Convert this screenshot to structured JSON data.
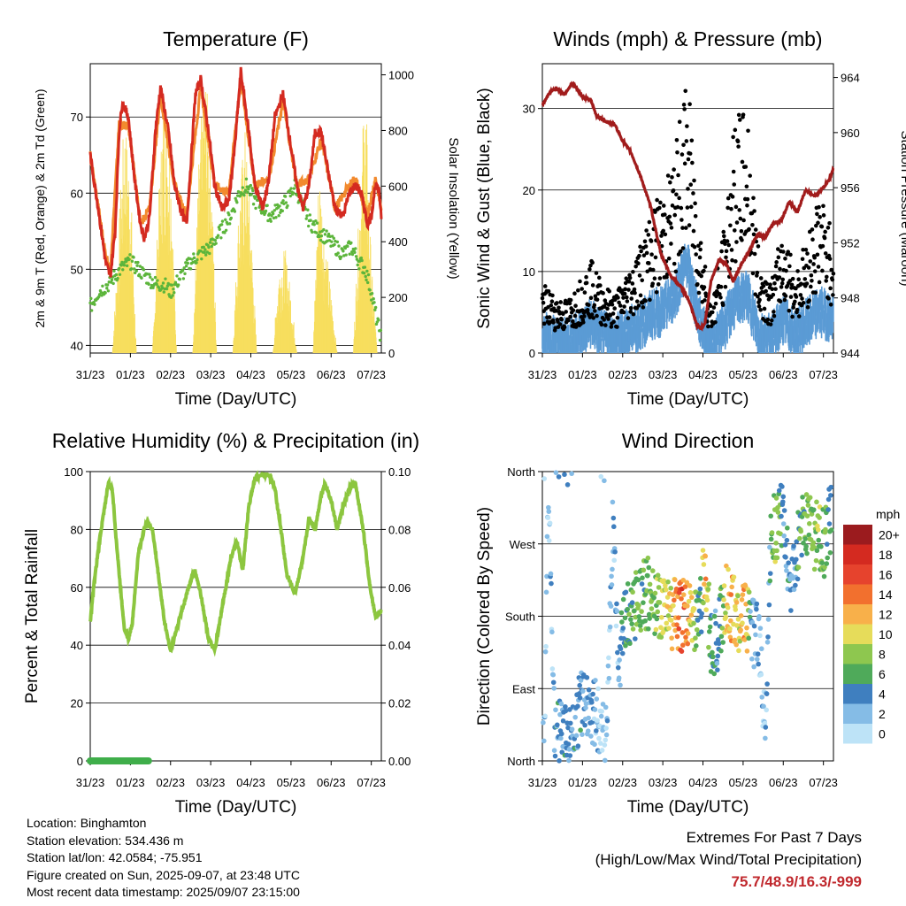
{
  "x_ticks": [
    "31/23",
    "01/23",
    "02/23",
    "03/23",
    "04/23",
    "05/23",
    "06/23",
    "07/23"
  ],
  "footer": {
    "location": "Location: Binghamton",
    "elevation": "Station elevation: 534.436 m",
    "latlon": "Station lat/lon: 42.0584; -75.951",
    "created": "Figure created on Sun, 2025-09-07, at 23:48 UTC",
    "recent": "Most recent data timestamp: 2025/09/07 23:15:00"
  },
  "extremes": {
    "title": "Extremes For Past 7 Days",
    "subtitle": "(High/Low/Max Wind/Total Precipitation)",
    "values": "75.7/48.9/16.3/-999"
  },
  "chart_data": [
    {
      "id": "temperature",
      "type": "line",
      "title": "Temperature (F)",
      "xlabel": "Time (Day/UTC)",
      "ylabel": "2m & 9m T (Red, Orange) & 2m Td (Green)",
      "ylabel_right": "Solar Insolation (Yellow)",
      "xlim": [
        0,
        7.25
      ],
      "ylim": [
        39,
        77
      ],
      "ylim_right": [
        0,
        1040
      ],
      "yticks": [
        40,
        50,
        60,
        70
      ],
      "yticks_right": [
        0,
        200,
        400,
        600,
        800,
        1000
      ],
      "grid": true,
      "series": [
        {
          "name": "2m T",
          "color": "#d42a20",
          "axis": "left",
          "x": [
            0,
            0.2,
            0.38,
            0.5,
            0.62,
            0.72,
            0.8,
            0.95,
            1.1,
            1.25,
            1.35,
            1.48,
            1.62,
            1.75,
            1.95,
            2.1,
            2.3,
            2.4,
            2.48,
            2.62,
            2.75,
            2.95,
            3.1,
            3.28,
            3.45,
            3.6,
            3.75,
            3.95,
            4.1,
            4.3,
            4.45,
            4.6,
            4.8,
            5.0,
            5.15,
            5.3,
            5.45,
            5.6,
            5.75,
            5.95,
            6.1,
            6.3,
            6.45,
            6.6,
            6.75,
            6.9,
            7.0,
            7.1,
            7.2,
            7.25
          ],
          "y": [
            65,
            58,
            51,
            49,
            55,
            68,
            72,
            70,
            62,
            56,
            54,
            57,
            68,
            74,
            68,
            61,
            57,
            56,
            62,
            73,
            75,
            68,
            61,
            58,
            59,
            66,
            76,
            68,
            61,
            58,
            62,
            70,
            73,
            66,
            61,
            58,
            61,
            68,
            68,
            62,
            58,
            57,
            60,
            61,
            60,
            56,
            57,
            61,
            60,
            57
          ]
        },
        {
          "name": "9m T",
          "color": "#f28a2e",
          "axis": "left",
          "x": [
            0,
            0.38,
            0.5,
            0.72,
            0.95,
            1.25,
            1.48,
            1.75,
            2.1,
            2.4,
            2.75,
            3.1,
            3.45,
            3.75,
            4.1,
            4.45,
            4.8,
            5.15,
            5.45,
            5.75,
            6.1,
            6.45,
            6.6,
            6.9,
            7.1,
            7.25
          ],
          "y": [
            65,
            52,
            50,
            69,
            69,
            56,
            58,
            73,
            61,
            57,
            74,
            61,
            60,
            75,
            61,
            62,
            72,
            61,
            62,
            67,
            58,
            61,
            62,
            57,
            62,
            58
          ]
        },
        {
          "name": "2m Td",
          "color": "#5cb53b",
          "axis": "left",
          "x": [
            0,
            0.2,
            0.45,
            0.6,
            0.75,
            1.0,
            1.2,
            1.4,
            1.65,
            1.85,
            2.0,
            2.25,
            2.5,
            2.75,
            3.0,
            3.25,
            3.5,
            3.7,
            3.9,
            4.1,
            4.3,
            4.5,
            4.7,
            4.9,
            5.1,
            5.3,
            5.5,
            5.7,
            5.9,
            6.1,
            6.3,
            6.5,
            6.7,
            6.85,
            7.0,
            7.15,
            7.25
          ],
          "y": [
            45,
            47,
            48,
            49,
            50,
            51,
            50,
            49,
            48,
            48,
            47,
            49,
            51,
            52,
            53,
            55,
            57,
            60,
            61,
            59,
            58,
            57,
            58,
            59,
            61,
            58,
            56,
            55,
            54,
            53,
            52,
            53,
            51,
            50,
            47,
            43,
            41
          ]
        },
        {
          "name": "Solar Insolation",
          "color": "#f7de5e",
          "axis": "right",
          "x": [
            0,
            0.55,
            0.7,
            0.85,
            1.0,
            1.15,
            1.55,
            1.7,
            1.85,
            2.0,
            2.15,
            2.55,
            2.7,
            2.85,
            3.0,
            3.15,
            3.55,
            3.7,
            3.85,
            4.0,
            4.15,
            4.55,
            4.7,
            4.85,
            5.0,
            5.15,
            5.55,
            5.7,
            5.85,
            6.0,
            6.15,
            6.55,
            6.7,
            6.85,
            7.0,
            7.15,
            7.25
          ],
          "y": [
            0,
            0,
            380,
            800,
            600,
            0,
            0,
            500,
            950,
            700,
            0,
            0,
            620,
            960,
            700,
            0,
            0,
            500,
            750,
            450,
            0,
            0,
            300,
            350,
            200,
            0,
            0,
            650,
            380,
            200,
            0,
            0,
            500,
            920,
            300,
            0,
            0
          ]
        }
      ]
    },
    {
      "id": "winds",
      "type": "line",
      "title": "Winds (mph) & Pressure (mb)",
      "xlabel": "Time (Day/UTC)",
      "ylabel": "Sonic Wind & Gust (Blue, Black)",
      "ylabel_right": "Station Pressure (Maroon)",
      "xlim": [
        0,
        7.25
      ],
      "ylim": [
        0,
        35.5
      ],
      "ylim_right": [
        944,
        965
      ],
      "yticks": [
        0,
        10,
        20,
        30
      ],
      "yticks_right": [
        944,
        948,
        952,
        956,
        960,
        964
      ],
      "grid": true,
      "series": [
        {
          "name": "Sonic Wind",
          "color": "#5b9bd5",
          "axis": "left",
          "x": [
            0,
            0.3,
            0.6,
            0.9,
            1.2,
            1.5,
            1.8,
            2.1,
            2.4,
            2.7,
            3.0,
            3.3,
            3.6,
            3.9,
            4.2,
            4.5,
            4.8,
            5.1,
            5.4,
            5.7,
            6.0,
            6.3,
            6.6,
            6.9,
            7.25
          ],
          "y": [
            3,
            2.5,
            2,
            3,
            4.5,
            3,
            2.5,
            3.5,
            4,
            5.5,
            6,
            8,
            12,
            5,
            1.5,
            4,
            7,
            8,
            3,
            2.5,
            5,
            3,
            4.5,
            6,
            5
          ]
        },
        {
          "name": "Gust",
          "color": "#000000",
          "axis": "left",
          "x": [
            0,
            0.3,
            0.6,
            0.9,
            1.2,
            1.5,
            1.8,
            2.1,
            2.4,
            2.7,
            3.0,
            3.3,
            3.6,
            3.9,
            4.2,
            4.5,
            4.8,
            5.1,
            5.4,
            5.7,
            6.0,
            6.3,
            6.6,
            6.9,
            7.25
          ],
          "y": [
            6,
            5,
            4.5,
            6,
            8,
            6,
            5,
            7,
            9,
            12,
            14,
            17,
            24,
            12,
            4,
            10,
            20,
            21,
            8,
            6,
            11,
            7,
            10,
            14,
            10
          ]
        },
        {
          "name": "Station Pressure",
          "color": "#a11c1c",
          "axis": "right",
          "x": [
            0,
            0.2,
            0.35,
            0.55,
            0.75,
            0.85,
            1.0,
            1.2,
            1.35,
            1.6,
            1.8,
            2.0,
            2.2,
            2.45,
            2.7,
            2.95,
            3.2,
            3.45,
            3.65,
            3.85,
            3.95,
            4.05,
            4.2,
            4.4,
            4.6,
            4.75,
            4.95,
            5.15,
            5.35,
            5.55,
            5.75,
            5.95,
            6.15,
            6.35,
            6.55,
            6.8,
            7.0,
            7.15,
            7.25
          ],
          "y": [
            962,
            963,
            963.2,
            962.8,
            963.6,
            963.2,
            962.6,
            962.4,
            961.2,
            960.8,
            960.6,
            959.4,
            958.6,
            956.8,
            954.6,
            951.2,
            949.6,
            948.8,
            947.8,
            946,
            945.8,
            946.2,
            949.2,
            950.8,
            950.4,
            949.2,
            950.4,
            951.4,
            952.6,
            952.4,
            953.4,
            953.6,
            955,
            954.2,
            955.8,
            955.4,
            956,
            956.6,
            957.4
          ]
        }
      ]
    },
    {
      "id": "humidity",
      "type": "line",
      "title": "Relative Humidity (%) & Precipitation (in)",
      "xlabel": "Time (Day/UTC)",
      "ylabel": "Percent & Total Rainfall",
      "xlim": [
        0,
        7.25
      ],
      "ylim": [
        0,
        100
      ],
      "ylim_right": [
        0,
        0.1
      ],
      "yticks": [
        0,
        20,
        40,
        60,
        80,
        100
      ],
      "yticks_right": [
        "0.00",
        "0.02",
        "0.04",
        "0.06",
        "0.08",
        "0.10"
      ],
      "grid": true,
      "series": [
        {
          "name": "Relative Humidity",
          "color": "#8cc63f",
          "axis": "left",
          "x": [
            0,
            0.1,
            0.25,
            0.45,
            0.55,
            0.65,
            0.75,
            0.85,
            0.95,
            1.05,
            1.2,
            1.4,
            1.55,
            1.7,
            1.85,
            2.0,
            2.2,
            2.45,
            2.6,
            2.75,
            2.95,
            3.1,
            3.3,
            3.5,
            3.65,
            3.8,
            3.95,
            4.1,
            4.3,
            4.45,
            4.6,
            4.75,
            4.9,
            5.1,
            5.3,
            5.45,
            5.6,
            5.75,
            5.85,
            6.0,
            6.15,
            6.3,
            6.45,
            6.6,
            6.8,
            6.95,
            7.1,
            7.25
          ],
          "y": [
            48,
            62,
            78,
            96,
            94,
            76,
            60,
            46,
            42,
            48,
            72,
            83,
            80,
            64,
            48,
            38,
            48,
            60,
            66,
            58,
            42,
            38,
            54,
            70,
            76,
            66,
            88,
            98,
            99,
            99,
            94,
            80,
            64,
            58,
            70,
            84,
            80,
            92,
            96,
            90,
            80,
            88,
            94,
            96,
            80,
            62,
            50,
            52
          ]
        },
        {
          "name": "Precipitation",
          "color": "#3fae4a",
          "axis": "right",
          "x": [
            0,
            1.45
          ],
          "y": [
            0,
            0
          ]
        }
      ]
    },
    {
      "id": "direction",
      "type": "scatter",
      "title": "Wind Direction",
      "xlabel": "Time (Day/UTC)",
      "ylabel": "Direction (Colored By Speed)",
      "xlim": [
        0,
        7.25
      ],
      "ylim": [
        0,
        360
      ],
      "yticks": [
        0,
        90,
        180,
        270,
        360
      ],
      "ytick_labels": [
        "North",
        "East",
        "South",
        "West",
        "North"
      ],
      "grid": true,
      "legend": {
        "title": "mph",
        "placement": "right",
        "labels": [
          "20+",
          "18",
          "16",
          "14",
          "12",
          "10",
          "8",
          "6",
          "4",
          "2",
          "0"
        ],
        "colors": [
          "#9b1b1e",
          "#d42a20",
          "#e6432d",
          "#f2702e",
          "#f8b04a",
          "#e6dc5a",
          "#8ec74f",
          "#4faa5a",
          "#3f7fbf",
          "#85bce6",
          "#bde3f7"
        ]
      },
      "series": [
        {
          "name": "Wind Direction",
          "x": [
            0.05,
            0.15,
            0.3,
            0.5,
            0.7,
            0.95,
            1.1,
            1.3,
            1.6,
            1.75,
            1.9,
            2.05,
            2.2,
            2.4,
            2.6,
            2.85,
            3.0,
            3.2,
            3.45,
            3.6,
            3.8,
            3.95,
            4.05,
            4.2,
            4.4,
            4.55,
            4.7,
            4.9,
            5.05,
            5.2,
            5.4,
            5.55,
            5.7,
            5.8,
            6.0,
            6.2,
            6.4,
            6.6,
            6.8,
            7.0,
            7.15
          ],
          "y": [
            10,
            350,
            30,
            40,
            20,
            70,
            80,
            60,
            20,
            300,
            120,
            170,
            190,
            200,
            210,
            200,
            180,
            185,
            180,
            180,
            175,
            200,
            250,
            140,
            160,
            200,
            190,
            180,
            185,
            160,
            150,
            40,
            300,
            280,
            320,
            200,
            280,
            300,
            280,
            270,
            300
          ],
          "speed": [
            2,
            1,
            3,
            4,
            3,
            4,
            3,
            2,
            1,
            2,
            3,
            5,
            6,
            7,
            6,
            8,
            9,
            10,
            16,
            12,
            8,
            4,
            13,
            5,
            4,
            10,
            12,
            9,
            14,
            3,
            2,
            1,
            5,
            8,
            4,
            3,
            6,
            7,
            8,
            7,
            5
          ]
        }
      ]
    }
  ]
}
